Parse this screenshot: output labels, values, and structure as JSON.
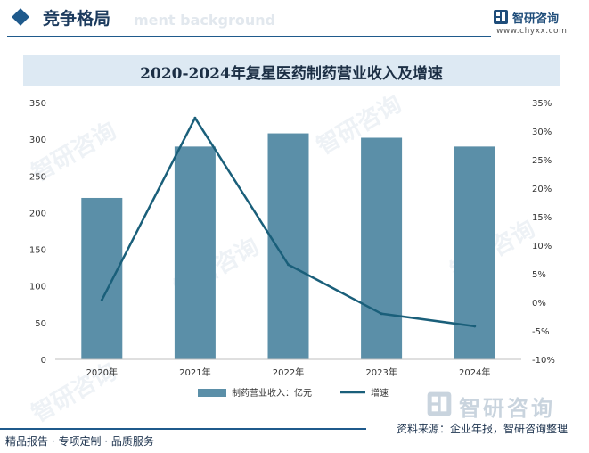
{
  "header": {
    "title": "竞争格局",
    "ghost_text": "ment background"
  },
  "brand": {
    "name": "智研咨询",
    "url": "www.chyxx.com",
    "logo_icon": "zhiyan-logo-icon"
  },
  "watermark": {
    "text": "智研咨询"
  },
  "source": {
    "text": "资料来源：企业年报，智研咨询整理",
    "logo_text": "智研咨询"
  },
  "footer": {
    "left_text": "精品报告 · 专项定制 · 品质服务"
  },
  "colors": {
    "bar": "#5b8fa8",
    "line": "#1a5f7a",
    "accent": "#1f5a8c"
  },
  "chart_data": {
    "type": "bar",
    "title": "2020-2024年复星医药制药营业收入及增速",
    "categories": [
      "2020年",
      "2021年",
      "2022年",
      "2023年",
      "2024年"
    ],
    "series": [
      {
        "name": "制药营业收入：亿元",
        "type": "bar",
        "axis": "left",
        "values": [
          220,
          290,
          308,
          302,
          290
        ]
      },
      {
        "name": "增速",
        "type": "line",
        "axis": "right",
        "values": [
          0.4,
          32.3,
          6.6,
          -2.0,
          -4.2
        ]
      }
    ],
    "y_left": {
      "lim": [
        0,
        350
      ],
      "ticks": [
        "0",
        "50",
        "100",
        "150",
        "200",
        "250",
        "300",
        "350"
      ]
    },
    "y_right": {
      "lim": [
        -10,
        35
      ],
      "ticks": [
        "-10%",
        "-5%",
        "0%",
        "5%",
        "10%",
        "15%",
        "20%",
        "25%",
        "30%",
        "35%"
      ]
    },
    "legend": {
      "position": "bottom",
      "items": [
        "制药营业收入：亿元",
        "增速"
      ]
    },
    "grid": false
  }
}
